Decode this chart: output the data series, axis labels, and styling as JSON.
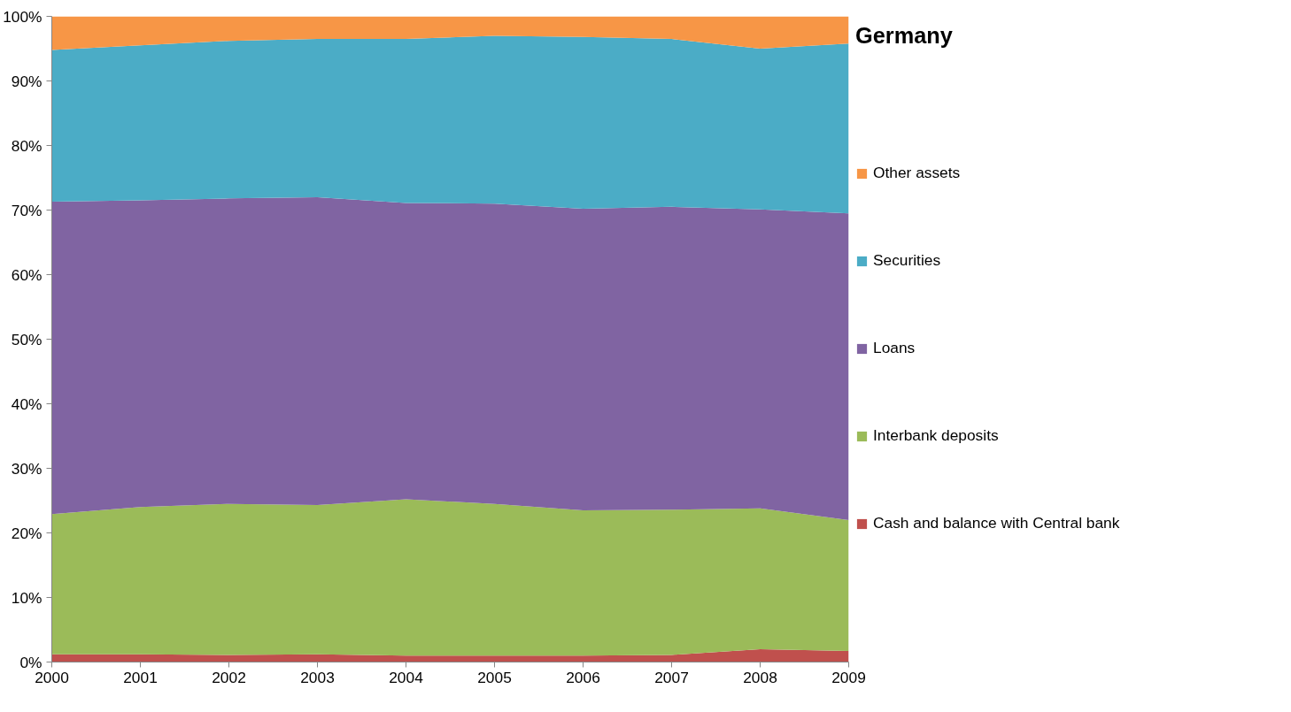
{
  "chart_data": {
    "type": "area",
    "stacked": true,
    "title": "Germany",
    "x": [
      2000,
      2001,
      2002,
      2003,
      2004,
      2005,
      2006,
      2007,
      2008,
      2009
    ],
    "xlim": [
      2000,
      2009
    ],
    "xticks": [
      2000,
      2001,
      2002,
      2003,
      2004,
      2005,
      2006,
      2007,
      2008,
      2009
    ],
    "ylim": [
      0,
      100
    ],
    "yticks": [
      {
        "value": 0,
        "label": "0%"
      },
      {
        "value": 10,
        "label": "10%"
      },
      {
        "value": 20,
        "label": "20%"
      },
      {
        "value": 30,
        "label": "30%"
      },
      {
        "value": 40,
        "label": "40%"
      },
      {
        "value": 50,
        "label": "50%"
      },
      {
        "value": 60,
        "label": "60%"
      },
      {
        "value": 70,
        "label": "70%"
      },
      {
        "value": 80,
        "label": "80%"
      },
      {
        "value": 90,
        "label": "90%"
      },
      {
        "value": 100,
        "label": "100%"
      }
    ],
    "grid": false,
    "legend": "right",
    "series": [
      {
        "name": "Cash and balance with Central bank",
        "color": "#c0504d",
        "values": [
          1.2,
          1.2,
          1.1,
          1.2,
          1.0,
          1.0,
          1.0,
          1.1,
          2.0,
          1.7
        ]
      },
      {
        "name": "Interbank deposits",
        "color": "#9bbb59",
        "values": [
          21.7,
          22.8,
          23.4,
          23.1,
          24.2,
          23.5,
          22.5,
          22.5,
          21.8,
          20.3
        ]
      },
      {
        "name": "Loans",
        "color": "#8064a2",
        "values": [
          48.4,
          47.5,
          47.3,
          47.7,
          45.9,
          46.5,
          46.7,
          46.9,
          46.3,
          47.5
        ]
      },
      {
        "name": "Securities",
        "color": "#4bacc6",
        "values": [
          23.5,
          24.0,
          24.4,
          24.5,
          25.4,
          26.0,
          26.6,
          26.0,
          24.9,
          26.3
        ]
      },
      {
        "name": "Other assets",
        "color": "#f79646",
        "values": [
          5.2,
          4.5,
          3.8,
          3.5,
          3.5,
          3.0,
          3.2,
          3.5,
          5.0,
          4.2
        ]
      }
    ]
  }
}
